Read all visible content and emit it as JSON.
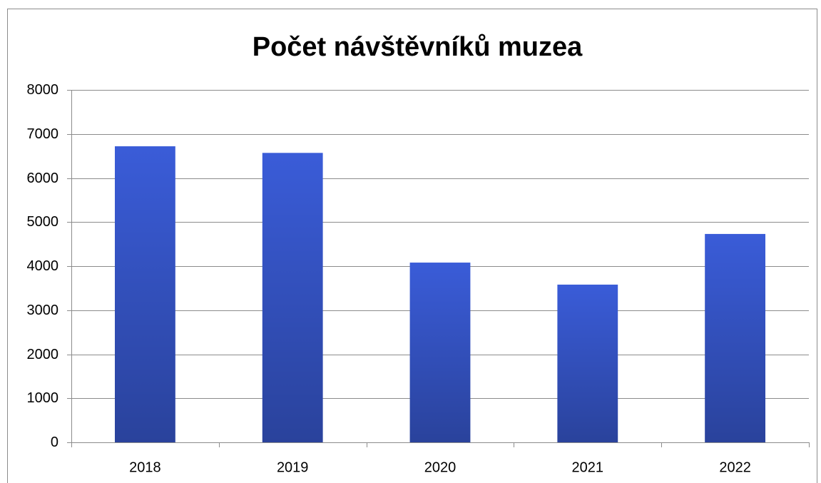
{
  "chart_data": {
    "type": "bar",
    "title": "Počet návštěvníků muzea",
    "categories": [
      "2018",
      "2019",
      "2020",
      "2021",
      "2022"
    ],
    "values": [
      6720,
      6570,
      4080,
      3580,
      4730
    ],
    "color": "#3a5cd8",
    "ylim": [
      0,
      8000
    ],
    "yticks": [
      0,
      1000,
      2000,
      3000,
      4000,
      5000,
      6000,
      7000,
      8000
    ],
    "grid": true
  }
}
